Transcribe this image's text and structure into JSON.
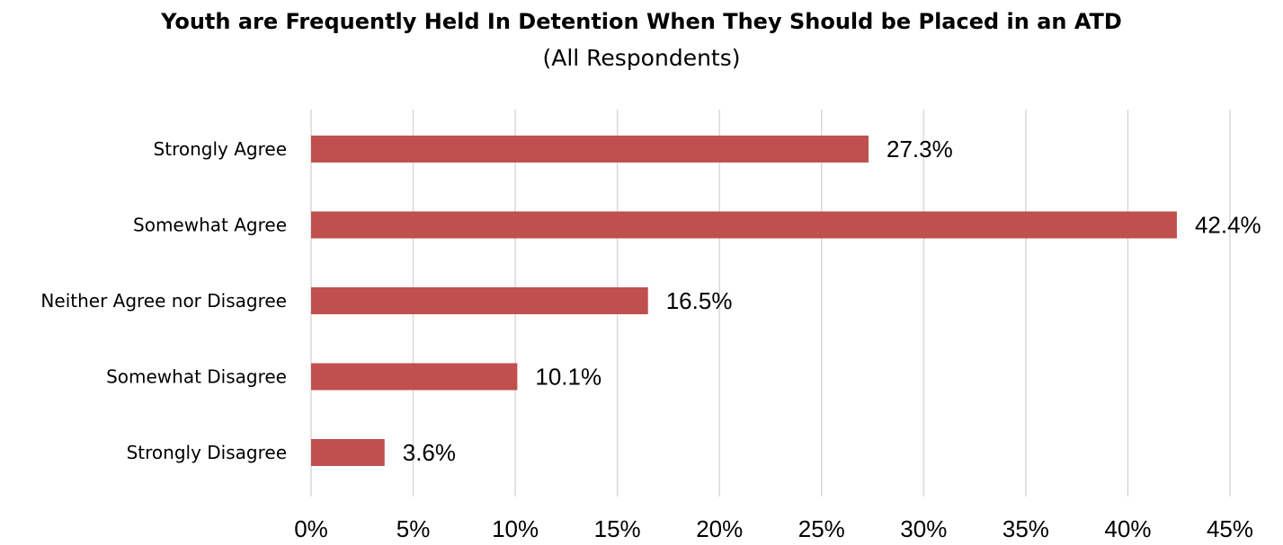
{
  "chart_data": {
    "type": "bar",
    "orientation": "horizontal",
    "title": "Youth are Frequently Held In Detention When They Should be Placed in an ATD",
    "subtitle": "(All Respondents)",
    "categories": [
      "Strongly Agree",
      "Somewhat Agree",
      "Neither Agree nor Disagree",
      "Somewhat Disagree",
      "Strongly Disagree"
    ],
    "values": [
      27.3,
      42.4,
      16.5,
      10.1,
      3.6
    ],
    "value_labels": [
      "27.3%",
      "42.4%",
      "16.5%",
      "10.1%",
      "3.6%"
    ],
    "xlim": [
      0,
      45
    ],
    "xticks": [
      0,
      5,
      10,
      15,
      20,
      25,
      30,
      35,
      40,
      45
    ],
    "xtick_labels": [
      "0%",
      "5%",
      "10%",
      "15%",
      "20%",
      "25%",
      "30%",
      "35%",
      "40%",
      "45%"
    ],
    "bar_color": "#c0504d",
    "grid": true,
    "grid_color": "#d9d9d9",
    "legend": "none"
  }
}
